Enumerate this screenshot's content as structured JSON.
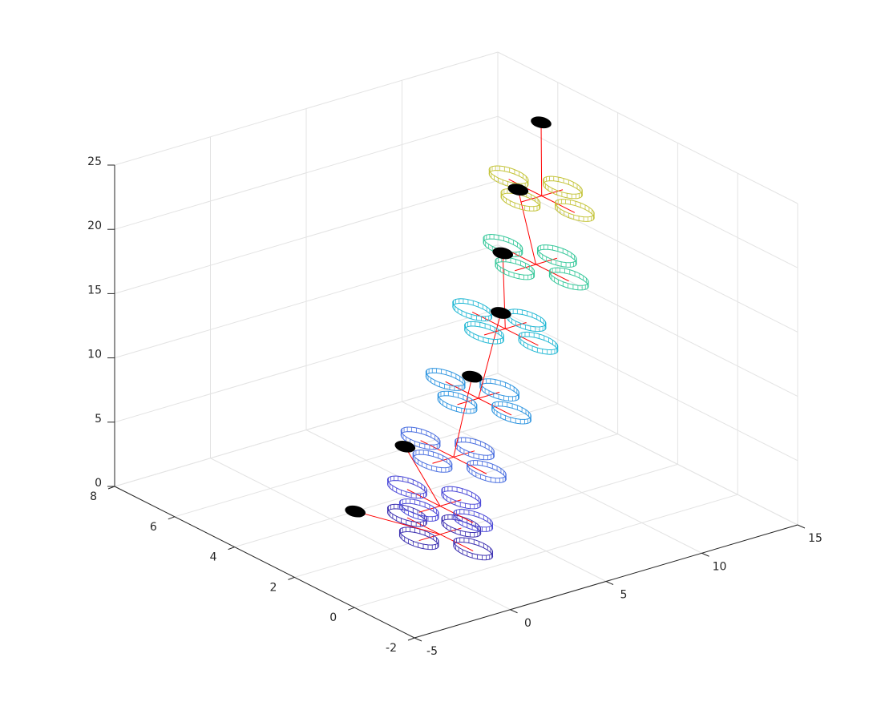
{
  "chart_data": {
    "type": "quad3d",
    "xlim": [
      -5,
      15
    ],
    "ylim": [
      -2,
      8
    ],
    "zlim": [
      0,
      25
    ],
    "xticks": [
      -5,
      0,
      5,
      10,
      15
    ],
    "yticks": [
      -2,
      0,
      2,
      4,
      6,
      8
    ],
    "zticks": [
      0,
      5,
      10,
      15,
      20,
      25
    ],
    "grid": true,
    "quads": {
      "x": [
        2.6,
        2.6,
        3.3,
        4.6,
        6.0,
        7.6,
        7.9
      ],
      "y": [
        2,
        2,
        2,
        2,
        2,
        2,
        2
      ],
      "z": [
        0,
        2.2,
        5.7,
        9.7,
        14.5,
        18.8,
        24.0
      ],
      "colors": [
        "#3b2fb0",
        "#4a48d8",
        "#4a6fe0",
        "#2f95e0",
        "#22b8d4",
        "#36c89a",
        "#c4c43a"
      ]
    },
    "markers": {
      "x": [
        1.3,
        3.9,
        7.4,
        8.9,
        9.0,
        9.8,
        11.0
      ],
      "y": [
        4,
        4,
        4,
        4,
        4,
        4,
        4
      ],
      "z": [
        0,
        3.9,
        7.8,
        12.1,
        16.7,
        21.3,
        26.0
      ],
      "color": "#000000"
    },
    "link_color": "#ff0000"
  }
}
